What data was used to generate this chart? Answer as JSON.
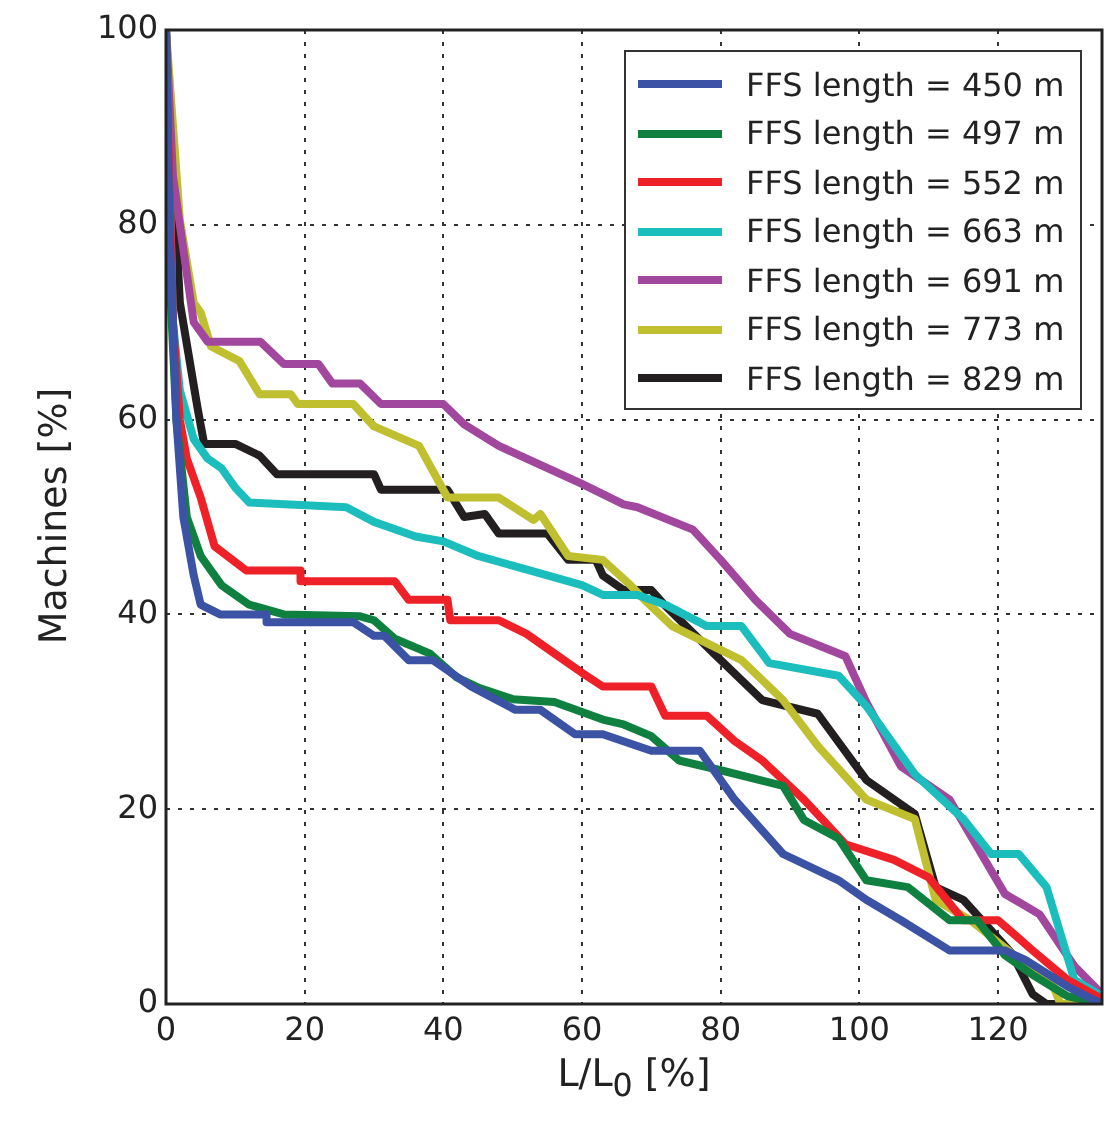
{
  "chart_data": {
    "type": "line",
    "xlabel": "L/L$_{0}$ [%]",
    "ylabel": "Machines [%]",
    "xlim": [
      0,
      135
    ],
    "ylim": [
      0,
      100
    ],
    "xticks": [
      0,
      20,
      40,
      60,
      80,
      100,
      120
    ],
    "yticks": [
      0,
      20,
      40,
      60,
      80,
      100
    ],
    "grid": true,
    "legend": "top right",
    "marker": "none",
    "line_style": "solid",
    "series": [
      {
        "name": "FFS length = 450 m",
        "color": "#3c52a4",
        "x": [
          0,
          0.5,
          1.5,
          2.5,
          4,
          5,
          7.8,
          14.5,
          14.5,
          27,
          30,
          31.5,
          35,
          38.5,
          44,
          50.4,
          54,
          59,
          63,
          70,
          77,
          82,
          89,
          97,
          101,
          106,
          113,
          121,
          124,
          130,
          135
        ],
        "values": [
          100,
          80,
          60,
          50,
          44,
          41,
          40,
          40,
          39.2,
          39.2,
          37.8,
          37.8,
          35.3,
          35.3,
          32.6,
          30.2,
          30.2,
          27.7,
          27.7,
          26,
          26,
          21,
          15.4,
          12.7,
          10.7,
          8.6,
          5.5,
          5.5,
          4.5,
          1.8,
          0
        ]
      },
      {
        "name": "FFS length = 497 m",
        "color": "#0f8040",
        "x": [
          0,
          0.5,
          1.5,
          3,
          5,
          8,
          12,
          17,
          28,
          30,
          33,
          38,
          42,
          45,
          50,
          56,
          63,
          66,
          70,
          74,
          80,
          89,
          92,
          97,
          101,
          107,
          113,
          117,
          121,
          125,
          130,
          135
        ],
        "values": [
          100,
          75,
          60,
          50,
          46,
          43,
          41,
          40,
          39.8,
          39.4,
          37.5,
          36,
          33.5,
          32.5,
          31.3,
          31,
          29.2,
          28.7,
          27.5,
          25,
          24,
          22.4,
          18.9,
          17,
          12.7,
          12,
          8.6,
          8.6,
          5,
          3,
          0.8,
          0
        ]
      },
      {
        "name": "FFS length = 552 m",
        "color": "#ee2028",
        "x": [
          0,
          1,
          2,
          3,
          5,
          7,
          11.6,
          19.4,
          19.4,
          33,
          35,
          40.6,
          41,
          48,
          52,
          56,
          60,
          63,
          70,
          72,
          78,
          82,
          86,
          92,
          98,
          105,
          110,
          115,
          120,
          125,
          130,
          135
        ],
        "values": [
          100,
          70,
          60,
          56,
          52,
          47,
          44.5,
          44.5,
          43.4,
          43.4,
          41.5,
          41.5,
          39.4,
          39.4,
          38,
          36,
          34,
          32.6,
          32.6,
          29.6,
          29.6,
          27,
          25,
          21,
          16.4,
          14.8,
          13,
          8.6,
          8.6,
          5.5,
          2.5,
          0.5
        ]
      },
      {
        "name": "FFS length = 663 m",
        "color": "#1bbdbd",
        "x": [
          0,
          1,
          2,
          4,
          6,
          8,
          10,
          12,
          26,
          30,
          36,
          40,
          45,
          50,
          55,
          60,
          63,
          68,
          72,
          78,
          83,
          87,
          97,
          101,
          108,
          115,
          119,
          123,
          127,
          131,
          135
        ],
        "values": [
          100,
          70,
          63,
          58,
          56,
          55,
          53,
          51.5,
          51,
          49.5,
          48,
          47.5,
          46,
          45,
          44,
          43,
          42,
          42,
          41,
          38.8,
          38.8,
          35,
          33.7,
          30.6,
          23.6,
          19,
          15.4,
          15.4,
          12,
          2.5,
          0.8
        ]
      },
      {
        "name": "FFS length = 691 m",
        "color": "#a1479e",
        "x": [
          0,
          1,
          2,
          3,
          4,
          6,
          7.8,
          13.6,
          17,
          22,
          24,
          28,
          31,
          40,
          43,
          48,
          60,
          66,
          68,
          76,
          80,
          85,
          90,
          98,
          101,
          106,
          113,
          121,
          126,
          131,
          135
        ],
        "values": [
          100,
          85,
          80,
          75,
          70,
          68,
          68,
          68,
          65.7,
          65.7,
          63.7,
          63.7,
          61.6,
          61.6,
          59.5,
          57.3,
          53.4,
          51.3,
          51,
          48.7,
          45.6,
          41.5,
          38,
          35.7,
          31,
          24.4,
          21,
          11.3,
          9.2,
          3.9,
          1
        ]
      },
      {
        "name": "FFS length = 773 m",
        "color": "#bfbf30",
        "x": [
          0,
          2,
          4,
          5,
          6.5,
          10.6,
          13.5,
          18,
          19,
          27,
          30,
          36.5,
          40.6,
          48,
          53,
          54,
          58,
          63,
          67,
          69,
          73,
          83,
          89,
          94,
          101,
          108,
          111,
          116,
          122,
          128,
          129,
          135
        ],
        "values": [
          100,
          80.5,
          72,
          71,
          67.5,
          66,
          62.6,
          62.6,
          61.6,
          61.6,
          59.3,
          57.3,
          52,
          52,
          49.7,
          50.3,
          46,
          45.6,
          43,
          41.5,
          38.8,
          35.3,
          31.2,
          26.5,
          21,
          19,
          10.7,
          8.6,
          5.2,
          1.8,
          0,
          0
        ]
      },
      {
        "name": "FFS length = 829 m",
        "color": "#231f20",
        "x": [
          0,
          2,
          4.5,
          5.5,
          10,
          13.5,
          16,
          30,
          31,
          40.6,
          43,
          46,
          48,
          55,
          58,
          62,
          63,
          66,
          70,
          72,
          79,
          86,
          94,
          101,
          108,
          111,
          115,
          122,
          125,
          127,
          135
        ],
        "values": [
          100,
          72,
          61.4,
          57.5,
          57.5,
          56.3,
          54.4,
          54.4,
          52.8,
          52.8,
          50,
          50.3,
          48.3,
          48.3,
          45.6,
          45.6,
          44,
          42.5,
          42.5,
          40.9,
          36,
          31.2,
          29.8,
          23,
          19.5,
          12,
          10.7,
          5.2,
          1,
          0,
          0
        ]
      }
    ]
  }
}
